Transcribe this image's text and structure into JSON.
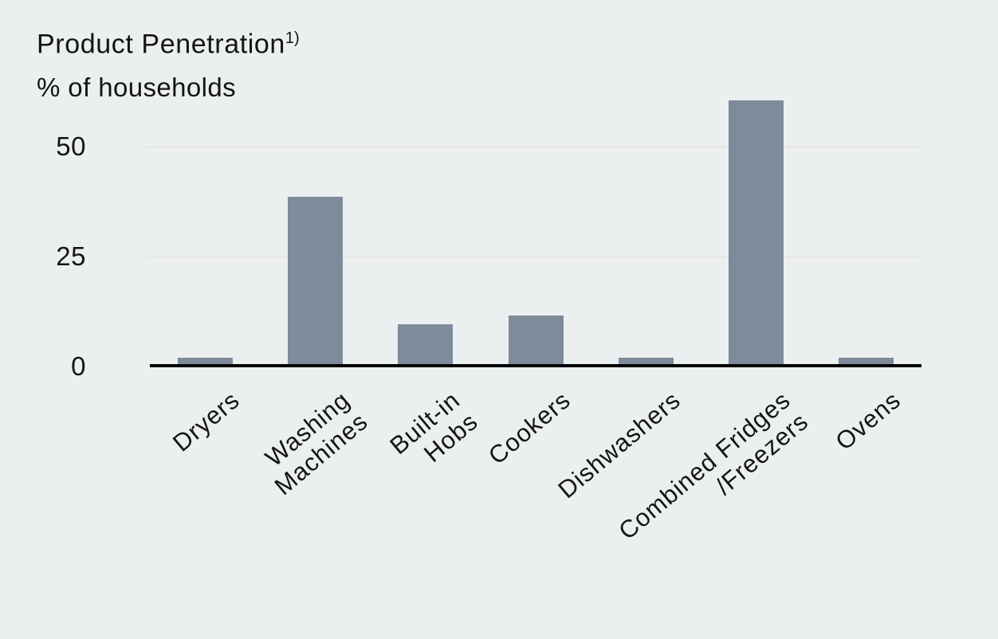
{
  "chart_data": {
    "type": "bar",
    "title": "Product Penetration",
    "title_note_marker": "1)",
    "subtitle": "% of households",
    "ylabel": "% of households",
    "categories": [
      "Dryers",
      "Washing Machines",
      "Built-in Hobs",
      "Cookers",
      "Dishwashers",
      "Combined Fridges /Freezers",
      "Ovens"
    ],
    "category_display_lines": [
      [
        "Dryers"
      ],
      [
        "Washing",
        "Machines"
      ],
      [
        "Built-in",
        "Hobs"
      ],
      [
        "Cookers"
      ],
      [
        "Dishwashers"
      ],
      [
        "Combined Fridges",
        "/Freezers"
      ],
      [
        "Ovens"
      ]
    ],
    "values": [
      1.5,
      38,
      9,
      11,
      1.5,
      60,
      1.5
    ],
    "yticks": [
      0,
      25,
      50
    ],
    "ylim": [
      0,
      62
    ],
    "grid": "horizontal-only",
    "legend": "none",
    "x_label_rotation_deg": -40,
    "bar_color": "#7d8b9b",
    "gridline_color": "#e9e7e5",
    "axis_line_color": "#000000",
    "text_color": "#141414",
    "background_color": "#eceff0"
  }
}
